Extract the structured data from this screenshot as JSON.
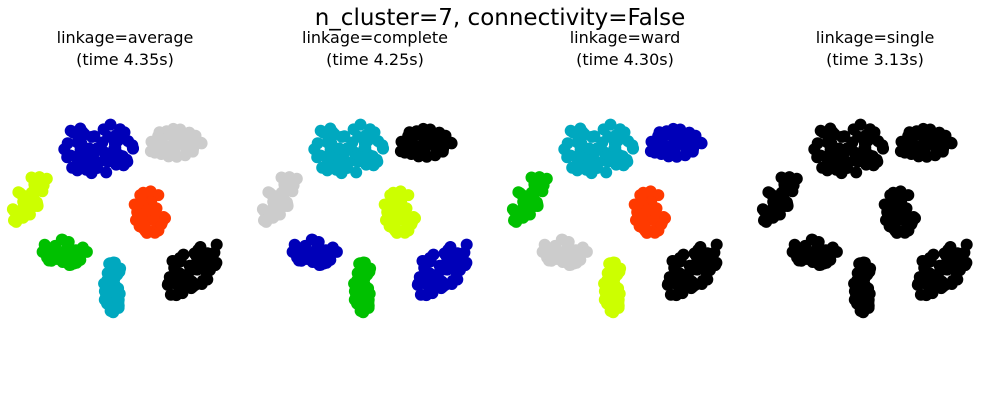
{
  "figure": {
    "suptitle": "n_cluster=7, connectivity=False"
  },
  "colors": {
    "cluster_0": "#cccccc",
    "cluster_1": "#000000",
    "cluster_2": "#00a8bf",
    "cluster_3": "#0000b8",
    "cluster_4": "#ff3a00",
    "cluster_5": "#ccff00",
    "cluster_6": "#00c000"
  },
  "chart_data": [
    {
      "type": "scatter",
      "title_line1": "linkage=average",
      "title_line2": "(time 4.35s)",
      "grid": false,
      "axes_visible": false,
      "groups": [
        {
          "name": "top-left blob",
          "x": 0.38,
          "y": 0.87,
          "color": "#0000b8"
        },
        {
          "name": "top-right blob",
          "x": 0.7,
          "y": 0.9,
          "color": "#cccccc"
        },
        {
          "name": "center-right blob",
          "x": 0.6,
          "y": 0.58,
          "color": "#ff3a00"
        },
        {
          "name": "left arm",
          "x": 0.1,
          "y": 0.65,
          "color": "#ccff00"
        },
        {
          "name": "lower-left blob",
          "x": 0.25,
          "y": 0.4,
          "color": "#00c000"
        },
        {
          "name": "center column",
          "x": 0.45,
          "y": 0.25,
          "color": "#00a8bf"
        },
        {
          "name": "right arm",
          "x": 0.78,
          "y": 0.33,
          "color": "#000000"
        }
      ]
    },
    {
      "type": "scatter",
      "title_line1": "linkage=complete",
      "title_line2": "(time 4.25s)",
      "grid": false,
      "axes_visible": false,
      "groups": [
        {
          "name": "top-left blob",
          "x": 0.38,
          "y": 0.87,
          "color": "#00a8bf"
        },
        {
          "name": "top-right blob",
          "x": 0.7,
          "y": 0.9,
          "color": "#000000"
        },
        {
          "name": "center-right blob",
          "x": 0.6,
          "y": 0.58,
          "color": "#ccff00"
        },
        {
          "name": "left arm",
          "x": 0.1,
          "y": 0.65,
          "color": "#cccccc"
        },
        {
          "name": "lower-left blob",
          "x": 0.25,
          "y": 0.4,
          "color": "#0000b8"
        },
        {
          "name": "center column",
          "x": 0.45,
          "y": 0.25,
          "color": "#00c000"
        },
        {
          "name": "right arm",
          "x": 0.78,
          "y": 0.33,
          "color": "#0000b8"
        }
      ]
    },
    {
      "type": "scatter",
      "title_line1": "linkage=ward",
      "title_line2": "(time 4.30s)",
      "grid": false,
      "axes_visible": false,
      "groups": [
        {
          "name": "top-left blob",
          "x": 0.38,
          "y": 0.87,
          "color": "#00a8bf"
        },
        {
          "name": "top-right blob",
          "x": 0.7,
          "y": 0.9,
          "color": "#0000b8"
        },
        {
          "name": "center-right blob",
          "x": 0.6,
          "y": 0.58,
          "color": "#ff3a00"
        },
        {
          "name": "left arm",
          "x": 0.1,
          "y": 0.65,
          "color": "#00c000"
        },
        {
          "name": "lower-left blob",
          "x": 0.25,
          "y": 0.4,
          "color": "#cccccc"
        },
        {
          "name": "center column",
          "x": 0.45,
          "y": 0.25,
          "color": "#ccff00"
        },
        {
          "name": "right arm",
          "x": 0.78,
          "y": 0.33,
          "color": "#000000"
        }
      ]
    },
    {
      "type": "scatter",
      "title_line1": "linkage=single",
      "title_line2": "(time 3.13s)",
      "grid": false,
      "axes_visible": false,
      "groups": [
        {
          "name": "top-left blob",
          "x": 0.38,
          "y": 0.87,
          "color": "#000000"
        },
        {
          "name": "top-right blob",
          "x": 0.7,
          "y": 0.9,
          "color": "#000000"
        },
        {
          "name": "center-right blob",
          "x": 0.6,
          "y": 0.58,
          "color": "#000000"
        },
        {
          "name": "left arm",
          "x": 0.1,
          "y": 0.65,
          "color": "#000000"
        },
        {
          "name": "lower-left blob",
          "x": 0.25,
          "y": 0.4,
          "color": "#000000"
        },
        {
          "name": "center column",
          "x": 0.45,
          "y": 0.25,
          "color": "#000000"
        },
        {
          "name": "right arm",
          "x": 0.78,
          "y": 0.33,
          "color": "#000000"
        }
      ]
    }
  ]
}
